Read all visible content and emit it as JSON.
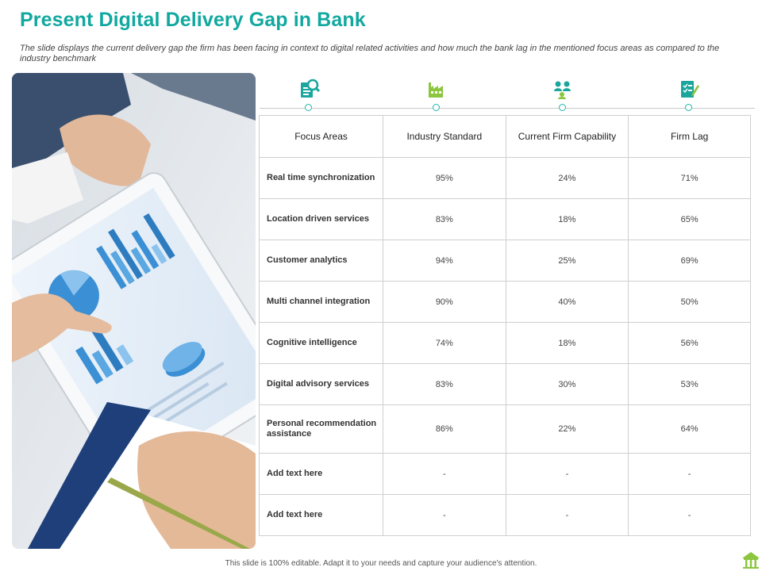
{
  "title": "Present Digital Delivery Gap in Bank",
  "subtitle": "The slide displays the current delivery gap the firm has been facing in context to digital related activities and how much the bank lag in the mentioned focus areas as compared to the industry benchmark",
  "timeline_icons": [
    "analysis-document-icon",
    "factory-icon",
    "people-network-icon",
    "checklist-edit-icon"
  ],
  "table": {
    "headers": [
      "Focus Areas",
      "Industry Standard",
      "Current Firm Capability",
      "Firm Lag"
    ],
    "rows": [
      [
        "Real time synchronization",
        "95%",
        "24%",
        "71%"
      ],
      [
        "Location driven services",
        "83%",
        "18%",
        "65%"
      ],
      [
        "Customer analytics",
        "94%",
        "25%",
        "69%"
      ],
      [
        "Multi channel integration",
        "90%",
        "40%",
        "50%"
      ],
      [
        "Cognitive intelligence",
        "74%",
        "18%",
        "56%"
      ],
      [
        "Digital advisory services",
        "83%",
        "30%",
        "53%"
      ],
      [
        "Personal recommendation assistance",
        "86%",
        "22%",
        "64%"
      ],
      [
        "Add text here",
        "-",
        "-",
        "-"
      ],
      [
        "Add text here",
        "-",
        "-",
        "-"
      ]
    ]
  },
  "footer": "This slide is 100% editable. Adapt it to your needs and capture your audience's attention.",
  "colors": {
    "accent": "#12a8a0",
    "icon_teal": "#1aa69c",
    "icon_green": "#8cc63f",
    "border": "#cfcfcf"
  }
}
